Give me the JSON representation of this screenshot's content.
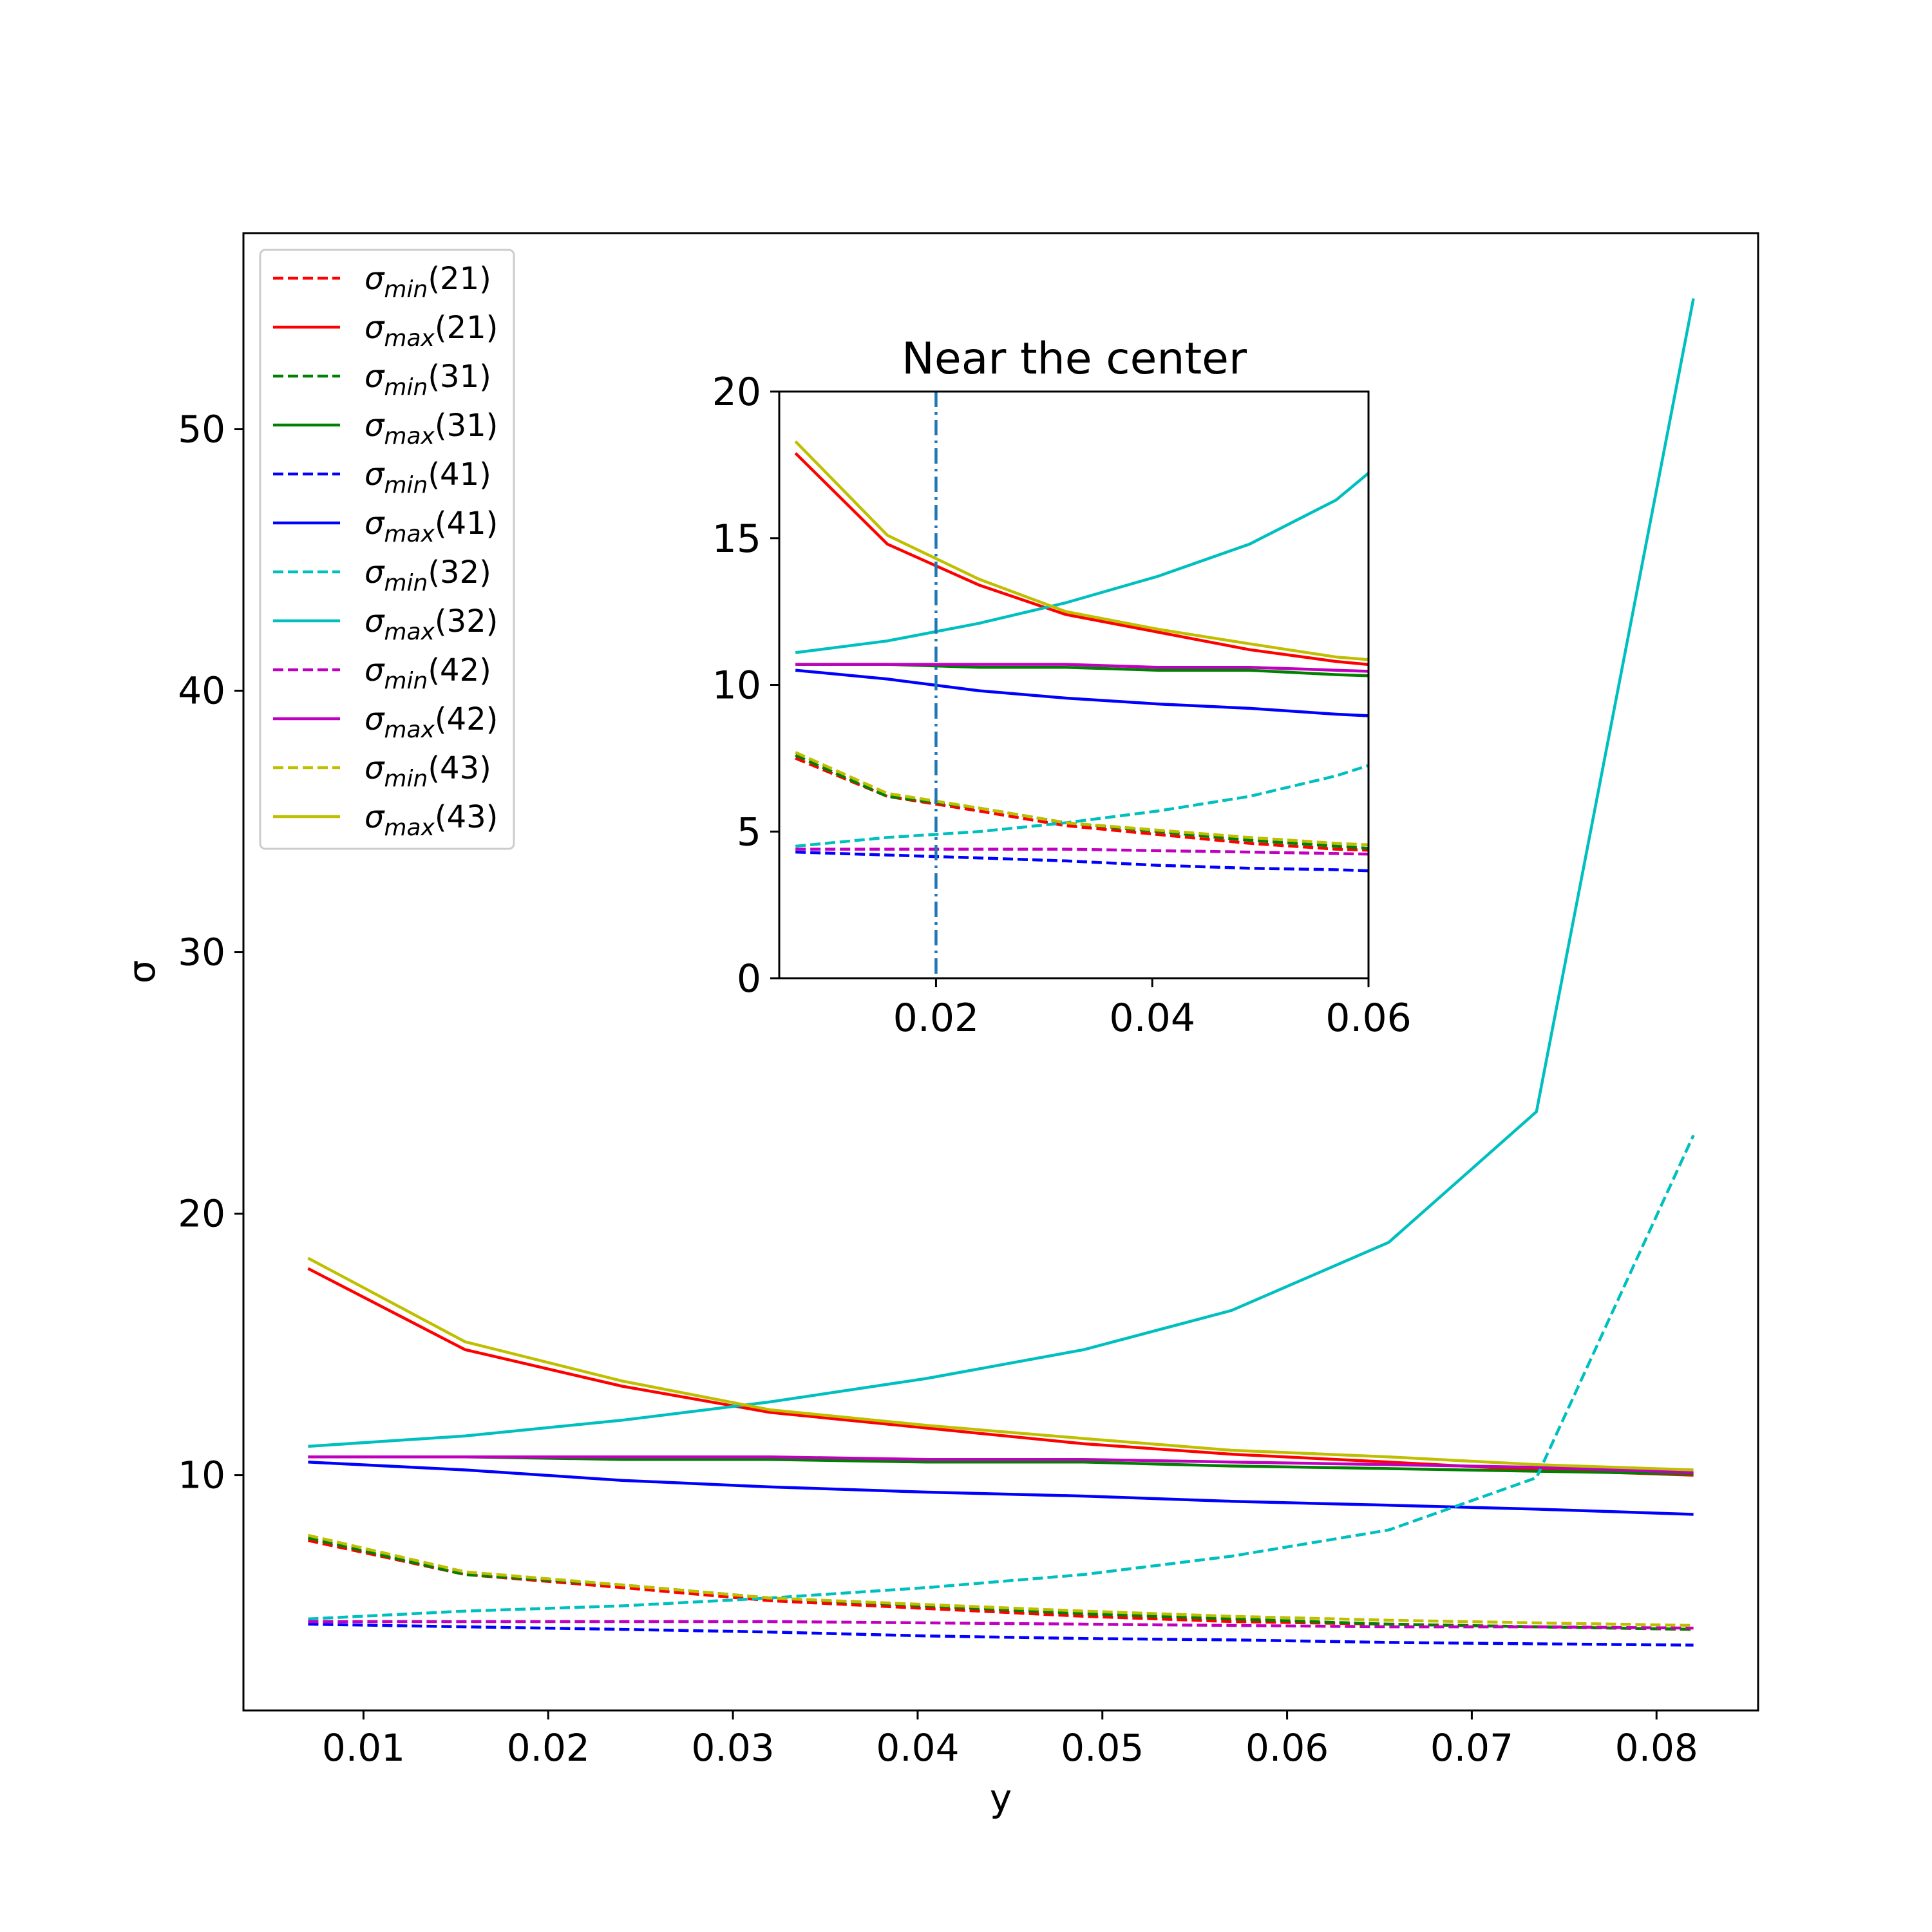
{
  "chart_data": [
    {
      "type": "line",
      "title": "",
      "xlabel": "y",
      "ylabel": "σ",
      "xlim": [
        0.0035,
        0.0855
      ],
      "ylim": [
        1.0,
        57.5
      ],
      "xticks": [
        0.01,
        0.02,
        0.03,
        0.04,
        0.05,
        0.06,
        0.07,
        0.08
      ],
      "xtick_labels": [
        "0.01",
        "0.02",
        "0.03",
        "0.04",
        "0.05",
        "0.06",
        "0.07",
        "0.08"
      ],
      "yticks": [
        10,
        20,
        30,
        40,
        50
      ],
      "ytick_labels": [
        "10",
        "20",
        "30",
        "40",
        "50"
      ],
      "grid": false,
      "legend_position": "upper-left",
      "x": [
        0.007,
        0.0155,
        0.024,
        0.032,
        0.0405,
        0.049,
        0.057,
        0.0655,
        0.0735,
        0.082
      ],
      "series": [
        {
          "name": "σ_min(21)",
          "sym": "σ",
          "sub": "min",
          "tag": "(21)",
          "color": "#ff0000",
          "dash": true,
          "values": [
            7.5,
            6.2,
            5.7,
            5.2,
            4.9,
            4.6,
            4.4,
            4.3,
            4.2,
            4.1
          ]
        },
        {
          "name": "σ_max(21)",
          "sym": "σ",
          "sub": "max",
          "tag": "(21)",
          "color": "#ff0000",
          "dash": false,
          "values": [
            17.9,
            14.8,
            13.4,
            12.4,
            11.8,
            11.2,
            10.8,
            10.5,
            10.2,
            10.0
          ]
        },
        {
          "name": "σ_min(31)",
          "sym": "σ",
          "sub": "min",
          "tag": "(31)",
          "color": "#008000",
          "dash": true,
          "values": [
            7.6,
            6.2,
            5.8,
            5.3,
            5.0,
            4.7,
            4.5,
            4.3,
            4.2,
            4.1
          ]
        },
        {
          "name": "σ_max(31)",
          "sym": "σ",
          "sub": "max",
          "tag": "(31)",
          "color": "#008000",
          "dash": false,
          "values": [
            10.7,
            10.7,
            10.6,
            10.6,
            10.5,
            10.5,
            10.35,
            10.25,
            10.15,
            10.05
          ]
        },
        {
          "name": "σ_min(41)",
          "sym": "σ",
          "sub": "min",
          "tag": "(41)",
          "color": "#0000ff",
          "dash": true,
          "values": [
            4.3,
            4.2,
            4.1,
            4.0,
            3.85,
            3.75,
            3.7,
            3.6,
            3.55,
            3.5
          ]
        },
        {
          "name": "σ_max(41)",
          "sym": "σ",
          "sub": "max",
          "tag": "(41)",
          "color": "#0000ff",
          "dash": false,
          "values": [
            10.5,
            10.2,
            9.8,
            9.55,
            9.35,
            9.2,
            9.0,
            8.85,
            8.7,
            8.5
          ]
        },
        {
          "name": "σ_min(32)",
          "sym": "σ",
          "sub": "min",
          "tag": "(32)",
          "color": "#00bfbf",
          "dash": true,
          "values": [
            4.5,
            4.8,
            5.0,
            5.3,
            5.7,
            6.2,
            6.9,
            7.9,
            9.9,
            23.0
          ]
        },
        {
          "name": "σ_max(32)",
          "sym": "σ",
          "sub": "max",
          "tag": "(32)",
          "color": "#00bfbf",
          "dash": false,
          "values": [
            11.1,
            11.5,
            12.1,
            12.8,
            13.7,
            14.8,
            16.3,
            18.9,
            23.9,
            55.0
          ]
        },
        {
          "name": "σ_min(42)",
          "sym": "σ",
          "sub": "min",
          "tag": "(42)",
          "color": "#bf00bf",
          "dash": true,
          "values": [
            4.4,
            4.4,
            4.4,
            4.4,
            4.35,
            4.3,
            4.25,
            4.2,
            4.2,
            4.15
          ]
        },
        {
          "name": "σ_max(42)",
          "sym": "σ",
          "sub": "max",
          "tag": "(42)",
          "color": "#bf00bf",
          "dash": false,
          "values": [
            10.7,
            10.7,
            10.7,
            10.7,
            10.6,
            10.6,
            10.5,
            10.4,
            10.3,
            10.1
          ]
        },
        {
          "name": "σ_min(43)",
          "sym": "σ",
          "sub": "min",
          "tag": "(43)",
          "color": "#bfbf00",
          "dash": true,
          "values": [
            7.7,
            6.3,
            5.8,
            5.3,
            5.05,
            4.8,
            4.6,
            4.45,
            4.35,
            4.25
          ]
        },
        {
          "name": "σ_max(43)",
          "sym": "σ",
          "sub": "max",
          "tag": "(43)",
          "color": "#bfbf00",
          "dash": false,
          "values": [
            18.3,
            15.1,
            13.6,
            12.5,
            11.9,
            11.4,
            10.95,
            10.7,
            10.4,
            10.2
          ]
        }
      ]
    },
    {
      "type": "line",
      "title": "Near the center",
      "xlabel": "",
      "ylabel": "",
      "xlim": [
        0.0055,
        0.06
      ],
      "ylim": [
        0,
        20
      ],
      "xticks": [
        0.02,
        0.04,
        0.06
      ],
      "xtick_labels": [
        "0.02",
        "0.04",
        "0.06"
      ],
      "yticks": [
        0,
        5,
        10,
        15,
        20
      ],
      "ytick_labels": [
        "0",
        "5",
        "10",
        "15",
        "20"
      ],
      "grid": false,
      "vline": {
        "x": 0.02,
        "color": "#1f77b4",
        "style": "dash-dot"
      },
      "x": [
        0.007,
        0.0155,
        0.024,
        0.032,
        0.0405,
        0.049,
        0.057,
        0.0655
      ],
      "series": [
        {
          "color": "#ff0000",
          "dash": true,
          "values": [
            7.5,
            6.2,
            5.7,
            5.2,
            4.9,
            4.6,
            4.4,
            4.3
          ]
        },
        {
          "color": "#ff0000",
          "dash": false,
          "values": [
            17.9,
            14.8,
            13.4,
            12.4,
            11.8,
            11.2,
            10.8,
            10.5
          ]
        },
        {
          "color": "#008000",
          "dash": true,
          "values": [
            7.6,
            6.2,
            5.8,
            5.3,
            5.0,
            4.7,
            4.5,
            4.3
          ]
        },
        {
          "color": "#008000",
          "dash": false,
          "values": [
            10.7,
            10.7,
            10.6,
            10.6,
            10.5,
            10.5,
            10.35,
            10.25
          ]
        },
        {
          "color": "#0000ff",
          "dash": true,
          "values": [
            4.3,
            4.2,
            4.1,
            4.0,
            3.85,
            3.75,
            3.7,
            3.6
          ]
        },
        {
          "color": "#0000ff",
          "dash": false,
          "values": [
            10.5,
            10.2,
            9.8,
            9.55,
            9.35,
            9.2,
            9.0,
            8.85
          ]
        },
        {
          "color": "#00bfbf",
          "dash": true,
          "values": [
            4.5,
            4.8,
            5.0,
            5.3,
            5.7,
            6.2,
            6.9,
            7.9
          ]
        },
        {
          "color": "#00bfbf",
          "dash": false,
          "values": [
            11.1,
            11.5,
            12.1,
            12.8,
            13.7,
            14.8,
            16.3,
            18.9
          ]
        },
        {
          "color": "#bf00bf",
          "dash": true,
          "values": [
            4.4,
            4.4,
            4.4,
            4.4,
            4.35,
            4.3,
            4.25,
            4.2
          ]
        },
        {
          "color": "#bf00bf",
          "dash": false,
          "values": [
            10.7,
            10.7,
            10.7,
            10.7,
            10.6,
            10.6,
            10.5,
            10.4
          ]
        },
        {
          "color": "#bfbf00",
          "dash": true,
          "values": [
            7.7,
            6.3,
            5.8,
            5.3,
            5.05,
            4.8,
            4.6,
            4.45
          ]
        },
        {
          "color": "#bfbf00",
          "dash": false,
          "values": [
            18.3,
            15.1,
            13.6,
            12.5,
            11.9,
            11.4,
            10.95,
            10.7
          ]
        }
      ]
    }
  ]
}
